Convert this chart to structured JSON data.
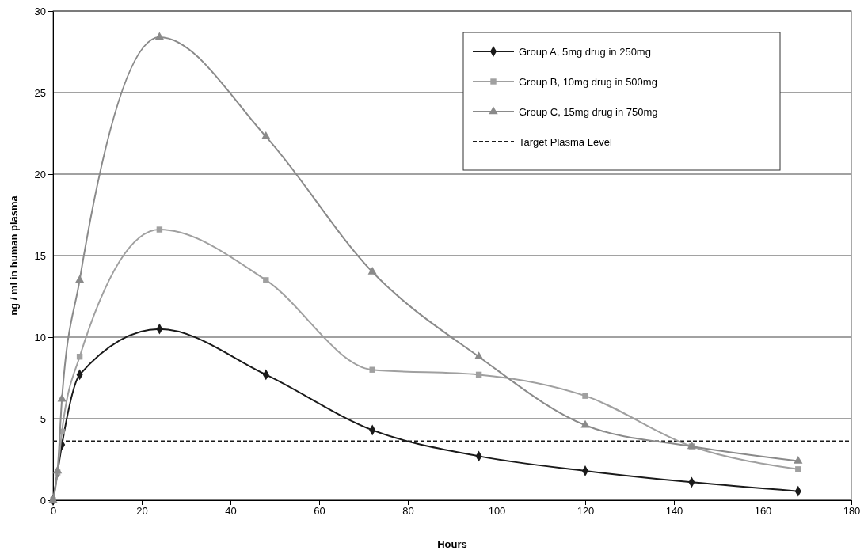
{
  "chart_data": {
    "type": "line",
    "xlabel": "Hours",
    "ylabel": "ng / ml in human plasma",
    "x": [
      0,
      1,
      2,
      6,
      24,
      48,
      72,
      96,
      120,
      144,
      168
    ],
    "series": [
      {
        "name": "Group A, 5mg drug in 250mg",
        "color": "#1a1a1a",
        "marker": "diamond",
        "values": [
          0,
          1.7,
          3.4,
          7.7,
          10.5,
          7.7,
          4.3,
          2.7,
          1.8,
          1.1,
          0.55
        ]
      },
      {
        "name": "Group B, 10mg drug in 500mg",
        "color": "#a0a0a0",
        "marker": "square",
        "values": [
          0,
          1.7,
          4.2,
          8.8,
          16.6,
          13.5,
          8.0,
          7.7,
          6.4,
          3.3,
          1.9
        ]
      },
      {
        "name": "Group C, 15mg drug in 750mg",
        "color": "#8a8a8a",
        "marker": "triangle",
        "values": [
          0,
          1.8,
          6.2,
          13.5,
          28.4,
          22.3,
          14.0,
          8.8,
          4.6,
          3.3,
          2.4
        ]
      }
    ],
    "ref_lines": [
      {
        "axis": "y",
        "value": 3.6,
        "label": "Target Plasma Level",
        "color": "#1a1a1a",
        "line_style": "dashed"
      }
    ],
    "xlim": [
      0,
      180
    ],
    "xticks": [
      0,
      20,
      40,
      60,
      80,
      100,
      120,
      140,
      160,
      180
    ],
    "ylim": [
      0,
      30
    ],
    "yticks": [
      0,
      5,
      10,
      15,
      20,
      25,
      30
    ],
    "grid": "y",
    "legend": "top right"
  }
}
